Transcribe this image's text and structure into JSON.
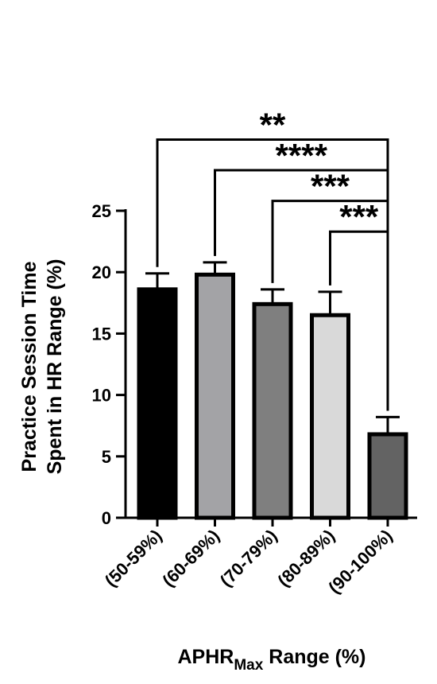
{
  "chart_data": {
    "type": "bar",
    "categories": [
      "(50-59%)",
      "(60-69%)",
      "(70-79%)",
      "(80-89%)",
      "(90-100%)"
    ],
    "values": [
      18.6,
      19.8,
      17.4,
      16.5,
      6.8
    ],
    "errors": [
      1.3,
      1.0,
      1.2,
      1.9,
      1.4
    ],
    "bar_colors": [
      "#000000",
      "#a3a3a6",
      "#7f7f7f",
      "#d9d9d9",
      "#636363"
    ],
    "ylim": [
      0,
      25
    ],
    "yticks": [
      "0",
      "5",
      "10",
      "15",
      "20",
      "25"
    ],
    "ylabel_line1": "Practice Session Time",
    "ylabel_line2": "Spent in HR Range (%)",
    "xlabel_main": "APHR",
    "xlabel_sub": "Max",
    "xlabel_tail": " Range (%)",
    "significance": [
      {
        "from": "(50-59%)",
        "to": "(90-100%)",
        "label": "**",
        "y": 30.8
      },
      {
        "from": "(60-69%)",
        "to": "(90-100%)",
        "label": "****",
        "y": 28.3
      },
      {
        "from": "(70-79%)",
        "to": "(90-100%)",
        "label": "***",
        "y": 25.8
      },
      {
        "from": "(80-89%)",
        "to": "(90-100%)",
        "label": "***",
        "y": 23.3
      }
    ]
  }
}
